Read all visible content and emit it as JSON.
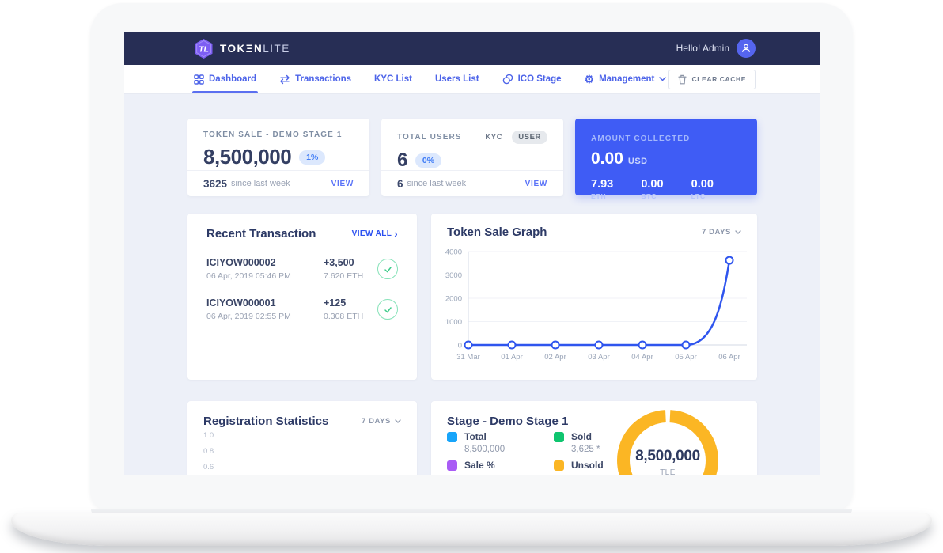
{
  "navbar": {
    "brand": {
      "text_bold": "TOKΞN",
      "text_light": "LITE"
    },
    "greeting": "Hello! Admin"
  },
  "menu": {
    "items": [
      {
        "label": "Dashboard",
        "active": true
      },
      {
        "label": "Transactions",
        "active": false
      },
      {
        "label": "KYC List",
        "active": false
      },
      {
        "label": "Users List",
        "active": false
      },
      {
        "label": "ICO Stage",
        "active": false
      },
      {
        "label": "Management",
        "active": false
      }
    ],
    "clear_cache_label": "CLEAR CACHE"
  },
  "stats": {
    "token_sale": {
      "label": "TOKEN SALE - DEMO STAGE 1",
      "value": "8,500,000",
      "badge": "1%",
      "delta": "3625",
      "delta_suffix": "since last week",
      "link": "VIEW"
    },
    "total_users": {
      "label": "TOTAL USERS",
      "toggle_options": [
        "KYC",
        "USER"
      ],
      "toggle_active": "USER",
      "value": "6",
      "badge": "0%",
      "delta": "6",
      "delta_suffix": "since last week",
      "link": "VIEW"
    },
    "amount_collected": {
      "label": "AMOUNT COLLECTED",
      "primary_value": "0.00",
      "primary_currency": "USD",
      "items": [
        {
          "value": "7.93",
          "currency": "ETH"
        },
        {
          "value": "0.00",
          "currency": "BTC"
        },
        {
          "value": "0.00",
          "currency": "LTC"
        }
      ]
    }
  },
  "transactions": {
    "title": "Recent Transaction",
    "view_all_label": "VIEW ALL",
    "rows": [
      {
        "id": "ICIYOW000002",
        "date": "06 Apr, 2019 05:46 PM",
        "amount": "+3,500",
        "eth": "7.620 ETH",
        "status": "confirmed"
      },
      {
        "id": "ICIYOW000001",
        "date": "06 Apr, 2019 02:55 PM",
        "amount": "+125",
        "eth": "0.308 ETH",
        "status": "confirmed"
      }
    ]
  },
  "chart_data": [
    {
      "id": "token_sale_graph",
      "type": "line",
      "title": "Token Sale Graph",
      "period_label": "7 DAYS",
      "x": [
        "31 Mar",
        "01 Apr",
        "02 Apr",
        "03 Apr",
        "04 Apr",
        "05 Apr",
        "06 Apr"
      ],
      "values": [
        0,
        0,
        0,
        0,
        0,
        0,
        3625
      ],
      "ylim": [
        0,
        4000
      ],
      "yticks": [
        0,
        1000,
        2000,
        3000,
        4000
      ],
      "grid": true,
      "line_color": "#2f55ee",
      "marker": "hollow-circle"
    },
    {
      "id": "registration_statistics",
      "type": "line",
      "title": "Registration Statistics",
      "period_label": "7 DAYS",
      "visible_yticks": [
        "1.0",
        "0.8",
        "0.6"
      ]
    },
    {
      "id": "stage_donut",
      "type": "donut",
      "title": "Stage - Demo Stage 1",
      "center_value": "8,500,000",
      "center_unit": "TLE",
      "ring_color": "#fbb624",
      "legend": [
        {
          "label": "Total",
          "value": "8,500,000",
          "color": "#18a5fa"
        },
        {
          "label": "Sold",
          "value": "3,625 *",
          "color": "#0fc56f"
        },
        {
          "label": "Sale %",
          "value": "",
          "color": "#a95cf5"
        },
        {
          "label": "Unsold",
          "value": "",
          "color": "#fbb624"
        }
      ]
    }
  ],
  "colors": {
    "navbar_bg": "#272e55",
    "accent_blue": "#3f5cf5",
    "link_blue": "#4d64e9",
    "success_green": "#3ecb8a",
    "content_bg": "#edf0f8"
  }
}
